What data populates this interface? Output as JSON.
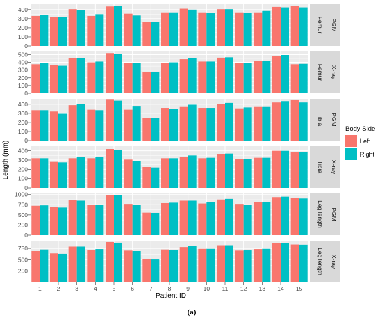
{
  "chart_data": {
    "type": "bar",
    "xlabel": "Patient ID",
    "ylabel": "Length (mm)",
    "caption": "(a)",
    "categories": [
      "1",
      "2",
      "3",
      "4",
      "5",
      "6",
      "7",
      "8",
      "9",
      "10",
      "11",
      "12",
      "13",
      "14",
      "15"
    ],
    "legend": {
      "title": "Body Side",
      "placement": "right",
      "entries": [
        {
          "name": "Left",
          "color": "#F8766D"
        },
        {
          "name": "Right",
          "color": "#00BFC4"
        }
      ]
    },
    "colors": {
      "left": "#F8766D",
      "right": "#00BFC4",
      "panel": "#EBEBEB",
      "strip": "#D9D9D9",
      "grid": "#FFFFFF"
    },
    "grid": true,
    "panels": [
      {
        "strip_outer": "Femur",
        "strip_inner": "PGM",
        "ylim": [
          0,
          460
        ],
        "yticks": [
          0,
          100,
          200,
          300,
          400
        ],
        "series": [
          {
            "name": "Left",
            "values": [
              330,
              315,
              405,
              330,
              435,
              355,
              265,
              370,
              410,
              370,
              405,
              370,
              370,
              430,
              440
            ]
          },
          {
            "name": "Right",
            "values": [
              340,
              320,
              395,
              350,
              440,
              335,
              265,
              370,
              400,
              365,
              405,
              365,
              385,
              425,
              425
            ]
          }
        ]
      },
      {
        "strip_outer": "Femur",
        "strip_inner": "X-ray",
        "ylim": [
          0,
          540
        ],
        "yticks": [
          0,
          100,
          200,
          300,
          400,
          500
        ],
        "series": [
          {
            "name": "Left",
            "values": [
              375,
              360,
              450,
              400,
              520,
              390,
              275,
              395,
              440,
              410,
              460,
              390,
              420,
              480,
              375
            ]
          },
          {
            "name": "Right",
            "values": [
              395,
              355,
              450,
              410,
              510,
              390,
              270,
              400,
              450,
              410,
              465,
              395,
              415,
              495,
              380
            ]
          }
        ]
      },
      {
        "strip_outer": "Tibia",
        "strip_inner": "PGM",
        "ylim": [
          0,
          460
        ],
        "yticks": [
          0,
          100,
          200,
          300,
          400
        ],
        "series": [
          {
            "name": "Left",
            "values": [
              335,
              320,
              390,
              340,
              450,
              340,
              250,
              360,
              370,
              360,
              405,
              355,
              370,
              420,
              445
            ]
          },
          {
            "name": "Right",
            "values": [
              335,
              295,
              400,
              335,
              440,
              375,
              250,
              345,
              395,
              360,
              415,
              365,
              370,
              435,
              420
            ]
          }
        ]
      },
      {
        "strip_outer": "Tibia",
        "strip_inner": "X-ray",
        "ylim": [
          0,
          450
        ],
        "yticks": [
          0,
          100,
          200,
          300,
          400
        ],
        "series": [
          {
            "name": "Left",
            "values": [
              320,
              280,
              320,
              320,
              420,
              305,
              225,
              320,
              330,
              320,
              365,
              310,
              325,
              400,
              390
            ]
          },
          {
            "name": "Right",
            "values": [
              320,
              275,
              330,
              330,
              410,
              290,
              220,
              320,
              350,
              325,
              370,
              310,
              325,
              400,
              385
            ]
          }
        ]
      },
      {
        "strip_outer": "Leg length",
        "strip_inner": "PGM",
        "ylim": [
          0,
          1030
        ],
        "yticks": [
          0,
          250,
          500,
          750,
          1000
        ],
        "series": [
          {
            "name": "Left",
            "values": [
              725,
              700,
              860,
              740,
              980,
              770,
              555,
              790,
              850,
              780,
              880,
              770,
              810,
              940,
              910
            ]
          },
          {
            "name": "Right",
            "values": [
              735,
              680,
              850,
              750,
              980,
              750,
              550,
              800,
              850,
              810,
              895,
              740,
              810,
              950,
              905
            ]
          }
        ]
      },
      {
        "strip_outer": "Leg length",
        "strip_inner": "X-ray",
        "ylim": [
          0,
          920
        ],
        "yticks": [
          250,
          500,
          750
        ],
        "series": [
          {
            "name": "Left",
            "values": [
              690,
              640,
              790,
              715,
              890,
              700,
              510,
              725,
              780,
              740,
              820,
              700,
              735,
              860,
              835
            ]
          },
          {
            "name": "Right",
            "values": [
              725,
              630,
              790,
              735,
              875,
              690,
              505,
              720,
              800,
              740,
              820,
              705,
              740,
              870,
              830
            ]
          }
        ]
      }
    ]
  }
}
